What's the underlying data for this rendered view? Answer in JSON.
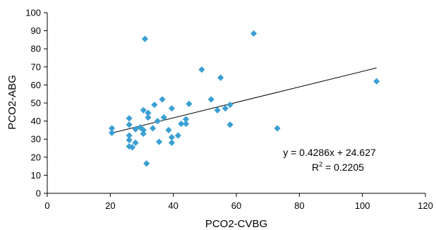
{
  "chart_data": {
    "type": "scatter",
    "title": "",
    "xlabel": "PCO2-CVBG",
    "ylabel": "PCO2-ABG",
    "xlim": [
      0,
      120
    ],
    "ylim": [
      0,
      100
    ],
    "xticks": [
      "0",
      "20",
      "40",
      "60",
      "80",
      "100",
      "120"
    ],
    "yticks": [
      "0",
      "10",
      "20",
      "30",
      "40",
      "50",
      "60",
      "70",
      "80",
      "90",
      "100"
    ],
    "grid": false,
    "legend": "none",
    "marker_color": "#3a9fd3",
    "series": [
      {
        "points": [
          [
            20.5,
            36
          ],
          [
            20.5,
            33.5
          ],
          [
            26,
            41.5
          ],
          [
            26,
            38
          ],
          [
            26,
            32
          ],
          [
            26,
            29.5
          ],
          [
            26,
            26
          ],
          [
            27,
            25.5
          ],
          [
            28,
            28
          ],
          [
            28,
            35.5
          ],
          [
            29.5,
            36.5
          ],
          [
            30.5,
            35
          ],
          [
            30.5,
            33
          ],
          [
            30.5,
            46
          ],
          [
            31,
            85.5
          ],
          [
            31.5,
            16.5
          ],
          [
            32,
            44.5
          ],
          [
            32,
            42
          ],
          [
            33.5,
            36
          ],
          [
            34,
            49
          ],
          [
            35,
            40
          ],
          [
            35.5,
            28.5
          ],
          [
            36.5,
            52
          ],
          [
            37,
            42
          ],
          [
            38.5,
            35
          ],
          [
            39.5,
            28
          ],
          [
            39.5,
            31
          ],
          [
            39.5,
            47
          ],
          [
            41.5,
            32
          ],
          [
            42.5,
            38.5
          ],
          [
            44,
            41
          ],
          [
            44,
            38.5
          ],
          [
            45,
            49.5
          ],
          [
            49,
            68.5
          ],
          [
            52,
            52
          ],
          [
            54,
            46
          ],
          [
            55,
            64
          ],
          [
            56.5,
            47
          ],
          [
            58,
            49
          ],
          [
            58,
            38
          ],
          [
            65.5,
            88.5
          ],
          [
            73,
            36
          ],
          [
            104.5,
            62
          ]
        ]
      }
    ],
    "trendline": {
      "slope": 0.4286,
      "intercept": 24.627,
      "x_range": [
        20.5,
        104.5
      ],
      "equation": "y = 0.4286x + 24.627",
      "r2_prefix": "R",
      "r2_exp": "2",
      "r2_value": " = 0.2205"
    }
  }
}
